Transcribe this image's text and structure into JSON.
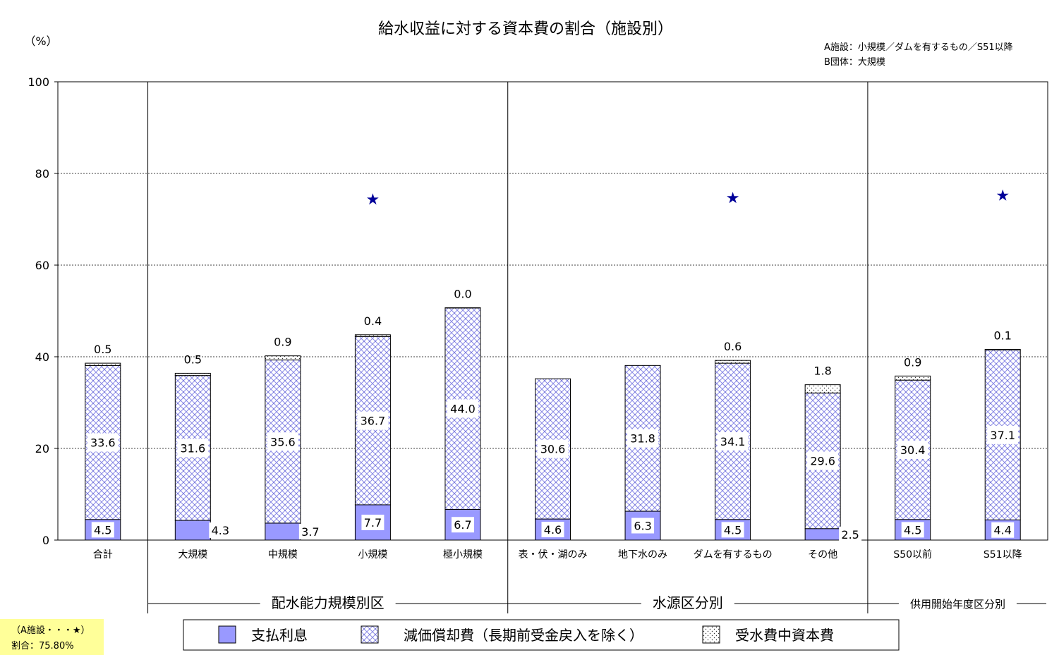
{
  "chart_data": {
    "type": "bar",
    "stacked": true,
    "title": "給水収益に対する資本費の割合（施設別）",
    "ylabel": "（%）",
    "ylim": [
      0,
      100
    ],
    "yticks": [
      0,
      20,
      40,
      60,
      80,
      100
    ],
    "grid": true,
    "notes": [
      "A施設：小規模／ダムを有するもの／S51以降",
      "B団体：大規模"
    ],
    "categories": [
      "合計",
      "大規模",
      "中規模",
      "小規模",
      "極小規模",
      "表・伏・湖のみ",
      "地下水のみ",
      "ダムを有するもの",
      "その他",
      "S50以前",
      "S51以降"
    ],
    "groups": [
      {
        "label": "配水能力規模別区",
        "from": 1,
        "to": 4
      },
      {
        "label": "水源区分別",
        "from": 5,
        "to": 8
      },
      {
        "label": "供用開始年度区分別",
        "from": 9,
        "to": 10
      }
    ],
    "series": [
      {
        "name": "支払利息",
        "values": [
          4.5,
          4.3,
          3.7,
          7.7,
          6.7,
          4.6,
          6.3,
          4.5,
          2.5,
          4.5,
          4.4
        ],
        "color": "#9999ff"
      },
      {
        "name": "減価償却費（長期前受金戻入を除く）",
        "values": [
          33.6,
          31.6,
          35.6,
          36.7,
          44.0,
          30.6,
          31.8,
          34.1,
          29.6,
          30.4,
          37.1
        ],
        "color": "#8080e0"
      },
      {
        "name": "受水費中資本費",
        "values": [
          0.5,
          0.5,
          0.9,
          0.4,
          0.0,
          null,
          null,
          0.6,
          1.8,
          0.9,
          0.1
        ],
        "color": "#6a6ad0"
      }
    ],
    "markers": [
      {
        "category": "小規模",
        "value": 74.5,
        "symbol": "★"
      },
      {
        "category": "ダムを有するもの",
        "value": 74.8,
        "symbol": "★"
      },
      {
        "category": "S51以降",
        "value": 75.3,
        "symbol": "★"
      }
    ],
    "annotation": {
      "line1": "（A施設・・・★）",
      "line2": "割合：75.80%"
    }
  }
}
